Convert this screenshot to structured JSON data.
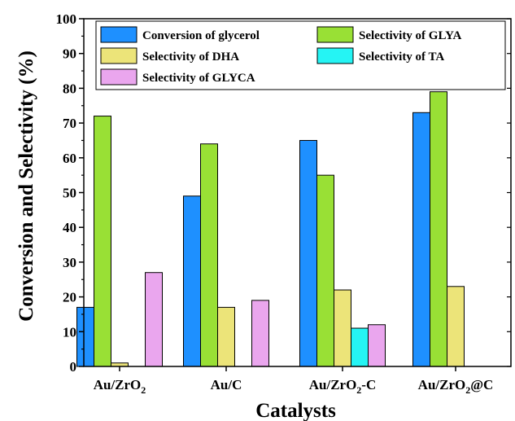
{
  "chart_data": {
    "type": "bar",
    "xlabel": "Catalysts",
    "ylabel": "Conversion and Selectivity (%)",
    "ylim": [
      0,
      100
    ],
    "yticks": [
      0,
      10,
      20,
      30,
      40,
      50,
      60,
      70,
      80,
      90,
      100
    ],
    "grid": false,
    "legend_position": "top",
    "categories": [
      {
        "base": "Au/ZrO",
        "sub": "2",
        "suffix": ""
      },
      {
        "base": "Au/C",
        "sub": "",
        "suffix": ""
      },
      {
        "base": "Au/ZrO",
        "sub": "2",
        "suffix": "-C"
      },
      {
        "base": "Au/ZrO",
        "sub": "2",
        "suffix": "@C"
      }
    ],
    "series": [
      {
        "name": "Conversion of glycerol",
        "color": "#1e90ff",
        "values": [
          17,
          49,
          65,
          73
        ]
      },
      {
        "name": "Selectivity of GLYA",
        "color": "#99e035",
        "values": [
          72,
          64,
          55,
          79
        ]
      },
      {
        "name": "Selectivity of DHA",
        "color": "#ece479",
        "values": [
          1,
          17,
          22,
          23
        ]
      },
      {
        "name": "Selectivity of TA",
        "color": "#25f4f4",
        "values": [
          0,
          0,
          11,
          0
        ]
      },
      {
        "name": "Selectivity of GLYCA",
        "color": "#eaa6ee",
        "values": [
          27,
          19,
          12,
          0
        ]
      }
    ]
  }
}
